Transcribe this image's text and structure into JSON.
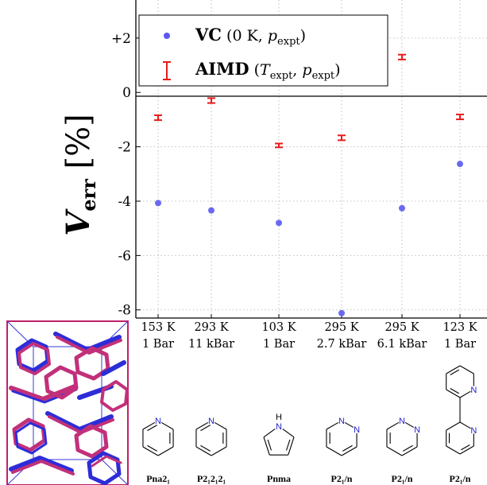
{
  "chart_data": {
    "type": "scatter",
    "title": "",
    "xlabel": "",
    "ylabel": "V_err [%]",
    "ylim": [
      -8.3,
      3.4
    ],
    "yticks": [
      -8,
      -6,
      -4,
      -2,
      0,
      2
    ],
    "ytick_labels": [
      "-8",
      "-6",
      "-4",
      "-2",
      "0",
      "+2"
    ],
    "grid": true,
    "legend_position": "top-left",
    "categories": [
      {
        "temperature": "153 K",
        "pressure": "1 Bar",
        "space_group": "Pna2₁",
        "molecule": "pyridine"
      },
      {
        "temperature": "293 K",
        "pressure": "11 kBar",
        "space_group": "P2₁2₁2₁",
        "molecule": "pyridine"
      },
      {
        "temperature": "103 K",
        "pressure": "1 Bar",
        "space_group": "Pnma",
        "molecule": "pyrrole"
      },
      {
        "temperature": "295 K",
        "pressure": "2.7 kBar",
        "space_group": "P2₁/n",
        "molecule": "pyridazine"
      },
      {
        "temperature": "295 K",
        "pressure": "6.1 kBar",
        "space_group": "P2₁/n",
        "molecule": "pyridazine"
      },
      {
        "temperature": "123 K",
        "pressure": "1 Bar",
        "space_group": "P2₁/n",
        "molecule": "2,2'-bipyridine"
      }
    ],
    "series": [
      {
        "name": "VC (0 K, p_expt)",
        "marker": "circle",
        "color": "#5a5af0",
        "values": [
          -4.07,
          -4.34,
          -4.8,
          -8.12,
          -4.26,
          -2.63
        ]
      },
      {
        "name": "AIMD (T_expt, p_expt)",
        "marker": "errorbar",
        "color": "#e81a1a",
        "values": [
          -0.93,
          -0.3,
          -1.95,
          -1.67,
          1.3,
          -0.9
        ],
        "errors": [
          0.09,
          0.09,
          0.07,
          0.09,
          0.09,
          0.09
        ]
      }
    ]
  },
  "atoms": {
    "nitrogen": "N",
    "hydrogen": "H"
  },
  "colors": {
    "axis": "#000000",
    "grid": "#b0b0b0",
    "vc": "#5a5af0",
    "aimd": "#e81a1a",
    "inset_frame": "#c0206a",
    "inset_blue": "#2d2dd8",
    "inset_magenta": "#c2307a"
  }
}
